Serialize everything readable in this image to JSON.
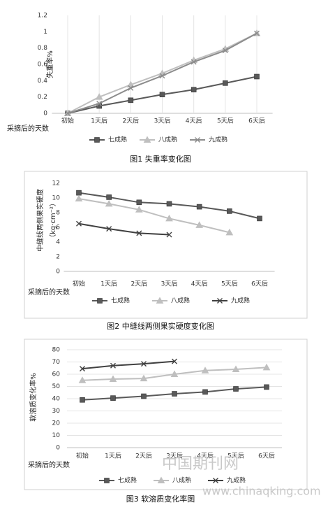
{
  "chart_data": [
    {
      "type": "line",
      "title": "图1 失重率变化图",
      "y_label": "失重率%",
      "x_label": "采摘后的天数",
      "categories": [
        "初始",
        "1天后",
        "2天后",
        "3天后",
        "4天后",
        "5天后",
        "6天后"
      ],
      "ylim": [
        0,
        1.2
      ],
      "yticks": [
        0,
        0.2,
        0.4,
        0.6,
        0.8,
        1,
        1.2
      ],
      "grid": "vertical",
      "series": [
        {
          "name": "七成熟",
          "color": "#595959",
          "marker": "square",
          "values": [
            0,
            0.09,
            0.16,
            0.23,
            0.29,
            0.37,
            0.45
          ]
        },
        {
          "name": "八成熟",
          "color": "#bfbfbf",
          "marker": "triangle",
          "values": [
            0,
            0.2,
            0.35,
            0.49,
            0.65,
            0.79,
            0.98
          ]
        },
        {
          "name": "九成熟",
          "color": "#8c8c8c",
          "marker": "cross",
          "values": [
            0,
            0.12,
            0.31,
            0.46,
            0.63,
            0.77,
            0.98
          ]
        }
      ]
    },
    {
      "type": "line",
      "title": "图2 中缝线两侧果实硬度变化图",
      "y_label": "中缝线两侧果实硬度",
      "y_unit": "（kg·cm⁻²）",
      "x_label": "采摘后的天数",
      "categories": [
        "初始",
        "1天后",
        "2天后",
        "3天后",
        "4天后",
        "5天后",
        "6天后"
      ],
      "ylim": [
        0,
        12
      ],
      "yticks": [
        0,
        2,
        4,
        6,
        8,
        10,
        12
      ],
      "grid": "none",
      "series": [
        {
          "name": "七成熟",
          "color": "#595959",
          "marker": "square",
          "values": [
            10.7,
            10.1,
            9.4,
            9.2,
            8.8,
            8.2,
            7.2
          ]
        },
        {
          "name": "八成熟",
          "color": "#bfbfbf",
          "marker": "triangle",
          "values": [
            9.9,
            9.2,
            8.4,
            7.2,
            6.3,
            5.3,
            null
          ]
        },
        {
          "name": "九成熟",
          "color": "#404040",
          "marker": "cross",
          "values": [
            6.5,
            5.8,
            5.2,
            5.0,
            null,
            null,
            null
          ]
        }
      ]
    },
    {
      "type": "line",
      "title": "图3 软溶质变化率图",
      "y_label": "软溶质变化率%",
      "x_label": "采摘后的天数",
      "categories": [
        "初始",
        "1天后",
        "2天后",
        "3天后",
        "4天后",
        "5天后",
        "6天后"
      ],
      "ylim": [
        0,
        80
      ],
      "yticks": [
        0,
        10,
        20,
        30,
        40,
        50,
        60,
        70,
        80
      ],
      "grid": "horizontal",
      "series": [
        {
          "name": "七成熟",
          "color": "#595959",
          "marker": "square",
          "values": [
            39,
            40.5,
            42,
            44,
            45.5,
            48,
            49.5
          ]
        },
        {
          "name": "八成熟",
          "color": "#bfbfbf",
          "marker": "triangle",
          "values": [
            55,
            56,
            56.5,
            60,
            63,
            64,
            65.5
          ]
        },
        {
          "name": "九成熟",
          "color": "#404040",
          "marker": "cross",
          "values": [
            64.5,
            67,
            68.5,
            70.5,
            null,
            null,
            null
          ]
        }
      ]
    }
  ],
  "watermark": [
    "中国期刊网",
    "www.chinaqking.com"
  ]
}
